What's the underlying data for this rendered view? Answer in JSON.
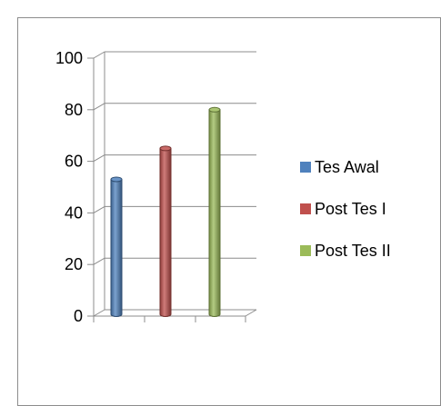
{
  "chart_data": {
    "type": "bar",
    "title": "",
    "xlabel": "",
    "ylabel": "",
    "categories": [
      ""
    ],
    "series": [
      {
        "name": "Tes Awal",
        "values": [
          53
        ],
        "color": "#4f81bd"
      },
      {
        "name": "Post Tes I",
        "values": [
          65
        ],
        "color": "#c0504d"
      },
      {
        "name": "Post Tes II",
        "values": [
          80
        ],
        "color": "#9bbb59"
      }
    ],
    "ylim": [
      0,
      100
    ],
    "yticks": [
      "0",
      "20",
      "40",
      "60",
      "80",
      "100"
    ],
    "grid": true,
    "legend": "right",
    "style": "3d-cylinder"
  }
}
